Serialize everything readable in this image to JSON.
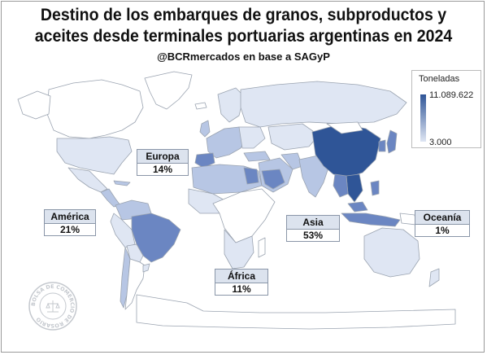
{
  "title_lines": [
    "Destino de los embarques de granos, subproductos y",
    "aceites desde terminales portuarias argentinas en 2024"
  ],
  "subtitle": "@BCRmercados en base a SAGyP",
  "legend": {
    "title": "Toneladas",
    "max": "11.089.622",
    "min": "3.000"
  },
  "regions": [
    {
      "name": "Europa",
      "pct": "14%"
    },
    {
      "name": "América",
      "pct": "21%"
    },
    {
      "name": "Asia",
      "pct": "53%"
    },
    {
      "name": "Oceanía",
      "pct": "1%"
    },
    {
      "name": "África",
      "pct": "11%"
    }
  ],
  "seal_text": "BOLSA DE COMERCIO DE ROSARIO",
  "colors": {
    "max": "#2f5597",
    "mid": "#6b86c2",
    "light": "#b7c6e4",
    "min": "#dfe6f3",
    "land_border": "#9aa3b0"
  }
}
